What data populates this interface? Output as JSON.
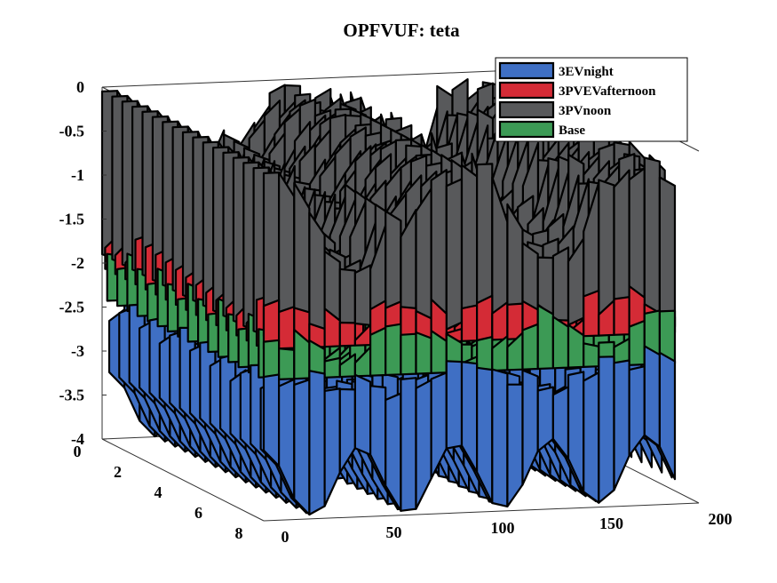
{
  "chart_data": {
    "type": "surface3d",
    "title": "OPFVUF: teta",
    "xlabel": "",
    "ylabel": "",
    "zlabel": "",
    "xlim": [
      0,
      200
    ],
    "ylim": [
      0,
      8
    ],
    "zlim": [
      -4,
      0
    ],
    "x_ticks": [
      "0",
      "50",
      "100",
      "150",
      "200"
    ],
    "y_ticks": [
      "0",
      "2",
      "4",
      "6",
      "8"
    ],
    "z_ticks": [
      "0",
      "-0.5",
      "-1",
      "-1.5",
      "-2",
      "-2.5",
      "-3",
      "-3.5",
      "-4"
    ],
    "legend_position": "top-right",
    "grid": false,
    "series": [
      {
        "name": "3EVnight",
        "color": "#3f6fc4",
        "base_depth": -3.6,
        "peak": -2.4
      },
      {
        "name": "3PVEVafternoon",
        "color": "#d42b36",
        "base_depth": -2.2,
        "peak": -1.6
      },
      {
        "name": "3PVnoon",
        "color": "#58595b",
        "base_depth": -1.5,
        "peak": -0.3
      },
      {
        "name": "Base",
        "color": "#3c9a55",
        "base_depth": -2.5,
        "peak": -1.9
      }
    ]
  }
}
